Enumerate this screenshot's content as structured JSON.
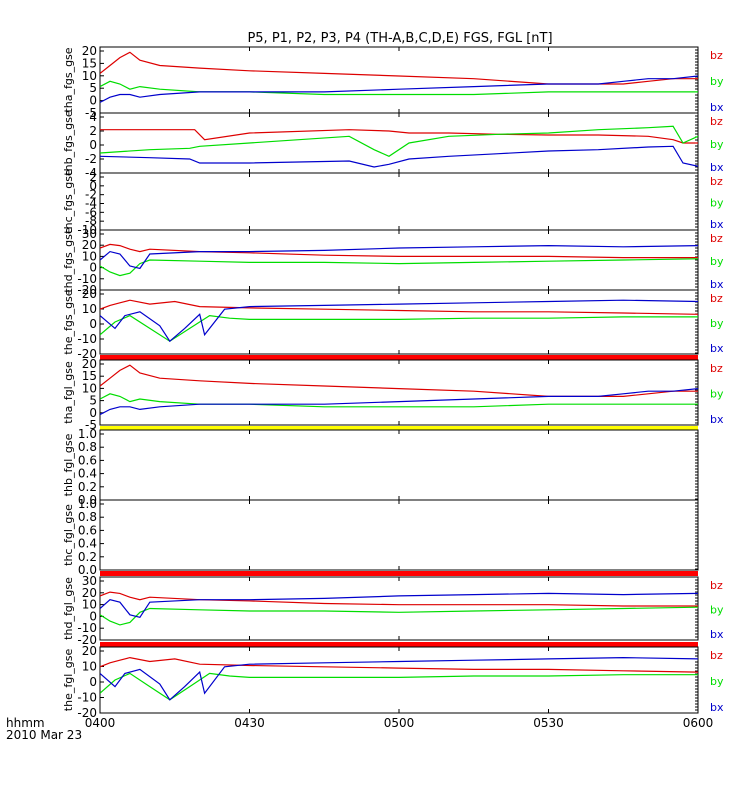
{
  "chart_data": {
    "type": "line",
    "title": "P5, P1, P2, P3, P4 (TH-A,B,C,D,E) FGS, FGL [nT]",
    "x_ticks": [
      "0400",
      "0430",
      "0500",
      "0530",
      "0600"
    ],
    "x_range_minutes": [
      0,
      120
    ],
    "footer_label_1": "hhmm",
    "footer_label_2": "2010 Mar 23",
    "colors": {
      "bz": "#dd0000",
      "by": "#00dd00",
      "bx": "#0000cc",
      "bar_red": "#ff0000",
      "bar_yellow": "#ffff00"
    },
    "panels": [
      {
        "ylabel": "tha_fgs_gse",
        "yticks": [
          "20",
          "15",
          "10",
          "5",
          "0",
          "-5"
        ],
        "ylim": [
          -5,
          20
        ],
        "legend": [
          "bz",
          "by",
          "bx"
        ],
        "has_data": true,
        "series": [
          {
            "name": "bz",
            "x": [
              0,
              2,
              4,
              6,
              8,
              12,
              20,
              30,
              45,
              60,
              75,
              90,
              100,
              105,
              110,
              115,
              120
            ],
            "y": [
              10,
              13,
              16,
              18,
              15,
              13,
              12,
              11,
              10,
              9,
              8,
              6,
              6,
              6,
              7,
              8,
              8
            ]
          },
          {
            "name": "by",
            "x": [
              0,
              2,
              4,
              6,
              8,
              12,
              20,
              30,
              45,
              60,
              75,
              90,
              100,
              105,
              110,
              115,
              120
            ],
            "y": [
              5,
              7,
              6,
              4,
              5,
              4,
              3,
              3,
              2,
              2,
              2,
              3,
              3,
              3,
              3,
              3,
              3
            ]
          },
          {
            "name": "bx",
            "x": [
              0,
              2,
              4,
              6,
              8,
              12,
              20,
              30,
              45,
              60,
              75,
              90,
              100,
              105,
              110,
              115,
              120
            ],
            "y": [
              -1,
              1,
              2,
              2,
              1,
              2,
              3,
              3,
              3,
              4,
              5,
              6,
              6,
              7,
              8,
              8,
              9
            ]
          }
        ]
      },
      {
        "ylabel": "thb_fgs_gse",
        "yticks": [
          "4",
          "2",
          "0",
          "-2",
          "-4"
        ],
        "ylim": [
          -4.5,
          4.5
        ],
        "legend": [
          "bz",
          "by",
          "bx"
        ],
        "has_data": true,
        "series": [
          {
            "name": "bz",
            "x": [
              0,
              10,
              19,
              21,
              30,
              50,
              58,
              62,
              70,
              80,
              90,
              100,
              110,
              115,
              117,
              120
            ],
            "y": [
              2,
              2,
              2,
              0.5,
              1.5,
              2,
              1.8,
              1.5,
              1.5,
              1.3,
              1.2,
              1.2,
              1,
              0.5,
              0,
              0
            ]
          },
          {
            "name": "by",
            "x": [
              0,
              10,
              18,
              20,
              30,
              50,
              55,
              58,
              62,
              70,
              80,
              90,
              100,
              110,
              115,
              117,
              120
            ],
            "y": [
              -1.5,
              -1,
              -0.8,
              -0.5,
              0,
              1,
              -1,
              -2,
              0,
              1,
              1.3,
              1.5,
              2,
              2.3,
              2.5,
              0,
              1
            ]
          },
          {
            "name": "bx",
            "x": [
              0,
              10,
              18,
              20,
              30,
              50,
              55,
              58,
              62,
              70,
              80,
              90,
              100,
              110,
              115,
              117,
              120
            ],
            "y": [
              -2,
              -2.2,
              -2.4,
              -3,
              -3,
              -2.7,
              -3.6,
              -3.2,
              -2.4,
              -2,
              -1.6,
              -1.2,
              -1,
              -0.6,
              -0.5,
              -3,
              -3.5
            ]
          }
        ]
      },
      {
        "ylabel": "thc_fgs_gse",
        "yticks": [
          "2",
          "0",
          "-2",
          "-4",
          "-6",
          "-8",
          "-10"
        ],
        "ylim": [
          -11,
          2
        ],
        "legend": [
          "bz",
          "by",
          "bx"
        ],
        "has_data": false,
        "series": []
      },
      {
        "ylabel": "thd_fgs_gse",
        "yticks": [
          "30",
          "20",
          "10",
          "0",
          "-10",
          "-20"
        ],
        "ylim": [
          -20,
          30
        ],
        "legend": [
          "bz",
          "by",
          "bx"
        ],
        "has_data": true,
        "series": [
          {
            "name": "bz",
            "x": [
              0,
              2,
              4,
              6,
              8,
              10,
              20,
              30,
              45,
              60,
              75,
              90,
              105,
              120
            ],
            "y": [
              15,
              18,
              17,
              14,
              12,
              14,
              12,
              11,
              9,
              8,
              8,
              8,
              7,
              7
            ]
          },
          {
            "name": "by",
            "x": [
              0,
              2,
              4,
              6,
              8,
              10,
              20,
              30,
              45,
              60,
              75,
              90,
              105,
              120
            ],
            "y": [
              0,
              -5,
              -8,
              -6,
              2,
              5,
              4,
              3,
              3,
              2,
              3,
              4,
              5,
              6
            ]
          },
          {
            "name": "bx",
            "x": [
              0,
              2,
              4,
              6,
              8,
              10,
              20,
              30,
              45,
              60,
              75,
              90,
              105,
              120
            ],
            "y": [
              5,
              12,
              10,
              0,
              -2,
              10,
              12,
              12,
              13,
              15,
              16,
              17,
              16,
              17
            ]
          }
        ]
      },
      {
        "ylabel": "the_fgs_gse",
        "yticks": [
          "20",
          "10",
          "0",
          "-10",
          "-20"
        ],
        "ylim": [
          -25,
          25
        ],
        "legend": [
          "bz",
          "by",
          "bx"
        ],
        "has_data": true,
        "series": [
          {
            "name": "bz",
            "x": [
              0,
              2,
              4,
              6,
              10,
              15,
              20,
              30,
              45,
              60,
              75,
              90,
              105,
              120
            ],
            "y": [
              10,
              13,
              15,
              17,
              14,
              16,
              12,
              11,
              10,
              9,
              8,
              8,
              7,
              6
            ]
          },
          {
            "name": "by",
            "x": [
              0,
              3,
              6,
              10,
              14,
              18,
              22,
              26,
              30,
              45,
              60,
              75,
              90,
              105,
              120
            ],
            "y": [
              -10,
              0,
              5,
              -5,
              -15,
              -5,
              5,
              3,
              2,
              2,
              2,
              3,
              3,
              4,
              4
            ]
          },
          {
            "name": "bx",
            "x": [
              0,
              3,
              5,
              8,
              12,
              14,
              17,
              20,
              21,
              25,
              30,
              45,
              60,
              75,
              90,
              105,
              120
            ],
            "y": [
              5,
              -5,
              5,
              8,
              -3,
              -15,
              -5,
              6,
              -10,
              10,
              12,
              13,
              14,
              15,
              16,
              17,
              16
            ]
          }
        ]
      },
      {
        "ylabel": "tha_fgl_gse",
        "yticks": [
          "20",
          "15",
          "10",
          "5",
          "0",
          "-5"
        ],
        "ylim": [
          -5,
          20
        ],
        "legend": [
          "bz",
          "by",
          "bx"
        ],
        "has_data": true,
        "series": [
          {
            "name": "bz",
            "x": [
              0,
              2,
              4,
              6,
              8,
              12,
              20,
              30,
              45,
              60,
              75,
              90,
              100,
              105,
              110,
              115,
              120
            ],
            "y": [
              10,
              13,
              16,
              18,
              15,
              13,
              12,
              11,
              10,
              9,
              8,
              6,
              6,
              6,
              7,
              8,
              8
            ]
          },
          {
            "name": "by",
            "x": [
              0,
              2,
              4,
              6,
              8,
              12,
              20,
              30,
              45,
              60,
              75,
              90,
              100,
              105,
              110,
              115,
              120
            ],
            "y": [
              5,
              7,
              6,
              4,
              5,
              4,
              3,
              3,
              2,
              2,
              2,
              3,
              3,
              3,
              3,
              3,
              3
            ]
          },
          {
            "name": "bx",
            "x": [
              0,
              2,
              4,
              6,
              8,
              12,
              20,
              30,
              45,
              60,
              75,
              90,
              100,
              105,
              110,
              115,
              120
            ],
            "y": [
              -1,
              1,
              2,
              2,
              1,
              2,
              3,
              3,
              3,
              4,
              5,
              6,
              6,
              7,
              8,
              8,
              9
            ]
          }
        ]
      },
      {
        "ylabel": "thb_fgl_gse",
        "yticks": [
          "1.0",
          "0.8",
          "0.6",
          "0.4",
          "0.2",
          "0.0"
        ],
        "ylim": [
          0,
          1
        ],
        "legend": [],
        "has_data": false,
        "series": []
      },
      {
        "ylabel": "thc_fgl_gse",
        "yticks": [
          "1.0",
          "0.8",
          "0.6",
          "0.4",
          "0.2",
          "0.0"
        ],
        "ylim": [
          0,
          1
        ],
        "legend": [],
        "has_data": false,
        "series": []
      },
      {
        "ylabel": "thd_fgl_gse",
        "yticks": [
          "30",
          "20",
          "10",
          "0",
          "-10",
          "-20"
        ],
        "ylim": [
          -20,
          30
        ],
        "legend": [
          "bz",
          "by",
          "bx"
        ],
        "has_data": true,
        "series": [
          {
            "name": "bz",
            "x": [
              0,
              2,
              4,
              6,
              8,
              10,
              20,
              30,
              45,
              60,
              75,
              90,
              105,
              120
            ],
            "y": [
              15,
              18,
              17,
              14,
              12,
              14,
              12,
              11,
              9,
              8,
              8,
              8,
              7,
              7
            ]
          },
          {
            "name": "by",
            "x": [
              0,
              2,
              4,
              6,
              8,
              10,
              20,
              30,
              45,
              60,
              75,
              90,
              105,
              120
            ],
            "y": [
              0,
              -5,
              -8,
              -6,
              2,
              5,
              4,
              3,
              3,
              2,
              3,
              4,
              5,
              6
            ]
          },
          {
            "name": "bx",
            "x": [
              0,
              2,
              4,
              6,
              8,
              10,
              20,
              30,
              45,
              60,
              75,
              90,
              105,
              120
            ],
            "y": [
              5,
              12,
              10,
              0,
              -2,
              10,
              12,
              12,
              13,
              15,
              16,
              17,
              16,
              17
            ]
          }
        ]
      },
      {
        "ylabel": "the_fgl_gse",
        "yticks": [
          "20",
          "10",
          "0",
          "-10",
          "-20"
        ],
        "ylim": [
          -25,
          25
        ],
        "legend": [
          "bz",
          "by",
          "bx"
        ],
        "has_data": true,
        "series": [
          {
            "name": "bz",
            "x": [
              0,
              2,
              4,
              6,
              10,
              15,
              20,
              30,
              45,
              60,
              75,
              90,
              105,
              120
            ],
            "y": [
              10,
              13,
              15,
              17,
              14,
              16,
              12,
              11,
              10,
              9,
              8,
              8,
              7,
              6
            ]
          },
          {
            "name": "by",
            "x": [
              0,
              3,
              6,
              10,
              14,
              18,
              22,
              26,
              30,
              45,
              60,
              75,
              90,
              105,
              120
            ],
            "y": [
              -10,
              0,
              5,
              -5,
              -15,
              -5,
              5,
              3,
              2,
              2,
              2,
              3,
              3,
              4,
              4
            ]
          },
          {
            "name": "bx",
            "x": [
              0,
              3,
              5,
              8,
              12,
              14,
              17,
              20,
              21,
              25,
              30,
              45,
              60,
              75,
              90,
              105,
              120
            ],
            "y": [
              5,
              -5,
              5,
              8,
              -3,
              -15,
              -5,
              6,
              -10,
              10,
              12,
              13,
              14,
              15,
              16,
              17,
              16
            ]
          }
        ]
      }
    ]
  }
}
